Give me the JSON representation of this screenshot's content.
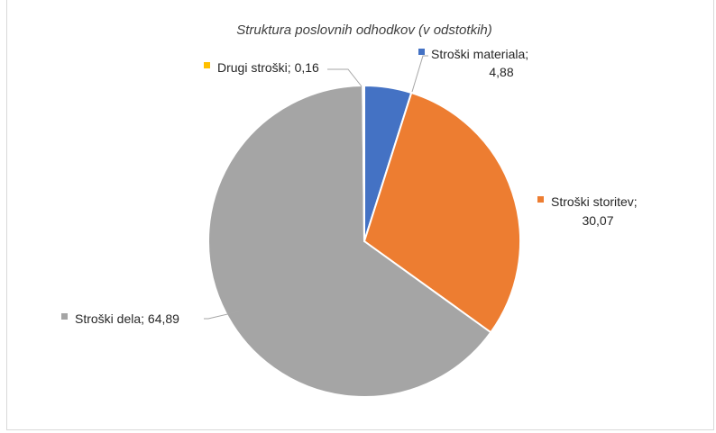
{
  "chart_data": {
    "type": "pie",
    "title": "Struktura poslovnih odhodkov (v odstotkih)",
    "slices": [
      {
        "name": "Stroški materiala",
        "value": 4.88,
        "value_text": "4,88",
        "color": "#4472C4"
      },
      {
        "name": "Stroški storitev",
        "value": 30.07,
        "value_text": "30,07",
        "color": "#ED7D31"
      },
      {
        "name": "Stroški dela",
        "value": 64.89,
        "value_text": "64,89",
        "color": "#A5A5A5"
      },
      {
        "name": "Drugi stroški",
        "value": 0.16,
        "value_text": "0,16",
        "color": "#FFC000"
      }
    ],
    "legend": "none",
    "data_labels": "outside-with-leader-lines",
    "start_angle": "12 o'clock, clockwise"
  }
}
